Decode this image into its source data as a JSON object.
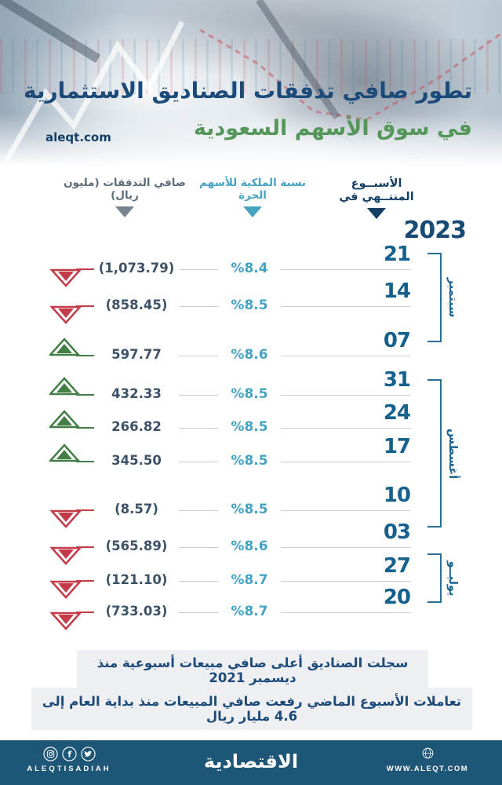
{
  "header": {
    "title_line1": "تطور صافي تدفقات الصناديق الاستثمارية",
    "title_line2": "في سوق الأسهم السعودية",
    "watermark": "aleqt.com"
  },
  "columns": {
    "week": "الأسبــوع المنتــهي في",
    "ownership": "نسبة الملكية للأسهم الحرة",
    "flows": "صافي التدفقات (مليون ريال)"
  },
  "year": "2023",
  "months": [
    {
      "label": "سبتمبر"
    },
    {
      "label": "أغسطس"
    },
    {
      "label": "يوليــو"
    }
  ],
  "chart_data": {
    "type": "table",
    "title": "تطور صافي تدفقات الصناديق الاستثمارية في سوق الأسهم السعودية",
    "year": "2023",
    "columns": [
      "الأسبوع المنتهي في",
      "نسبة الملكية للأسهم الحرة",
      "صافي التدفقات (مليون ريال)"
    ],
    "rows": [
      {
        "day": "21",
        "month": "سبتمبر",
        "ownership_pct": "%8.4",
        "net_flow": "(1,073.79)",
        "net_flow_value": -1073.79,
        "direction": "down"
      },
      {
        "day": "14",
        "month": "سبتمبر",
        "ownership_pct": "%8.5",
        "net_flow": "(858.45)",
        "net_flow_value": -858.45,
        "direction": "down"
      },
      {
        "day": "07",
        "month": "سبتمبر",
        "ownership_pct": "%8.6",
        "net_flow": "597.77",
        "net_flow_value": 597.77,
        "direction": "up"
      },
      {
        "day": "31",
        "month": "أغسطس",
        "ownership_pct": "%8.5",
        "net_flow": "432.33",
        "net_flow_value": 432.33,
        "direction": "up"
      },
      {
        "day": "24",
        "month": "أغسطس",
        "ownership_pct": "%8.5",
        "net_flow": "266.82",
        "net_flow_value": 266.82,
        "direction": "up"
      },
      {
        "day": "17",
        "month": "أغسطس",
        "ownership_pct": "%8.5",
        "net_flow": "345.50",
        "net_flow_value": 345.5,
        "direction": "up"
      },
      {
        "day": "10",
        "month": "أغسطس",
        "ownership_pct": "%8.5",
        "net_flow": "(8.57)",
        "net_flow_value": -8.57,
        "direction": "down"
      },
      {
        "day": "03",
        "month": "أغسطس",
        "ownership_pct": "%8.6",
        "net_flow": "(565.89)",
        "net_flow_value": -565.89,
        "direction": "down"
      },
      {
        "day": "27",
        "month": "يوليو",
        "ownership_pct": "%8.7",
        "net_flow": "(121.10)",
        "net_flow_value": -121.1,
        "direction": "down"
      },
      {
        "day": "20",
        "month": "يوليو",
        "ownership_pct": "%8.7",
        "net_flow": "(733.03)",
        "net_flow_value": -733.03,
        "direction": "down"
      }
    ]
  },
  "notes": [
    "سجلت الصناديق أعلى صافي مبيعات أسبوعية منذ ديسمبر 2021",
    "تعاملات الأسبوع الماضي رفعت صافي المبيعات منذ بداية العام إلى 4.6 مليار ريال"
  ],
  "footer": {
    "brand": "الاقتصادية",
    "handle": "ALEQTISADIAH",
    "url": "WWW.ALEQT.COM",
    "social_icons": [
      "instagram-icon",
      "facebook-icon",
      "twitter-icon"
    ],
    "globe_icon": "globe-icon"
  },
  "colors": {
    "navy": "#1d4b79",
    "greentitle": "#55975b",
    "colnavy": "#143f66",
    "teal": "#45a3c2",
    "slate": "#5d6c7a",
    "graytri": "#76838e",
    "daynum": "#15618d",
    "year": "#174a74",
    "val": "#3d5267",
    "red": "#c33b49",
    "green": "#447e47",
    "line": "#c9cdd1",
    "bracket": "#2a6e93",
    "mlabel": "#1a6390",
    "footerbg": "#1e5677",
    "notebg": "#edeff2"
  }
}
